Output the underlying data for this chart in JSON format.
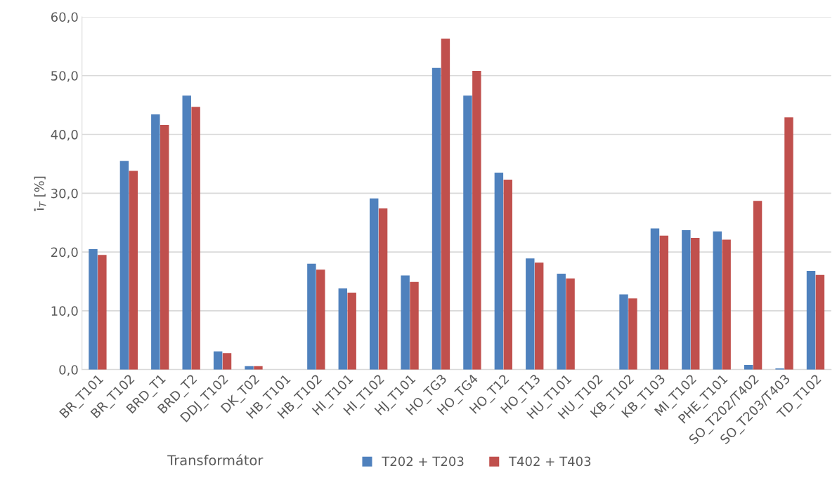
{
  "chart_data": {
    "type": "bar",
    "xlabel": "Transformátor",
    "ylabel": "i̇$_{T}$ [%]",
    "categories": [
      "BR_T101",
      "BR_T102",
      "BRD_T1",
      "BRD_T2",
      "DDJ_T102",
      "DK_T02",
      "HB_T101",
      "HB_T102",
      "HI_T101",
      "HI_T102",
      "HJ_T101",
      "HO_TG3",
      "HO_TG4",
      "HO_T12",
      "HO_T13",
      "HU_T101",
      "HU_T102",
      "KB_T102",
      "KB_T103",
      "MI_T102",
      "PHE_T101",
      "SO_T202/T402",
      "SO_T203/T403",
      "TD_T102"
    ],
    "series": [
      {
        "name": "T202 + T203",
        "color": "#4f81bd",
        "values": [
          20.5,
          35.5,
          43.4,
          46.6,
          3.1,
          0.6,
          0,
          18.0,
          13.8,
          29.1,
          16.0,
          51.3,
          46.6,
          33.5,
          18.9,
          16.3,
          0,
          12.8,
          24.0,
          23.7,
          23.5,
          0.8,
          0.2,
          16.8
        ]
      },
      {
        "name": "T402 + T403",
        "color": "#c0504d",
        "values": [
          19.5,
          33.8,
          41.6,
          44.7,
          2.8,
          0.6,
          0,
          17.0,
          13.1,
          27.4,
          14.9,
          56.3,
          50.8,
          32.3,
          18.2,
          15.5,
          0,
          12.1,
          22.8,
          22.4,
          22.1,
          28.7,
          42.9,
          16.1
        ]
      }
    ],
    "ylim": [
      0,
      60
    ],
    "yticks": [
      {
        "value": 0,
        "label": "0,0"
      },
      {
        "value": 10,
        "label": "10,0"
      },
      {
        "value": 20,
        "label": "20,0"
      },
      {
        "value": 30,
        "label": "30,0"
      },
      {
        "value": 40,
        "label": "40,0"
      },
      {
        "value": 50,
        "label": "50,0"
      },
      {
        "value": 60,
        "label": "60,0"
      }
    ],
    "grid": "y",
    "legend": "bottom"
  }
}
